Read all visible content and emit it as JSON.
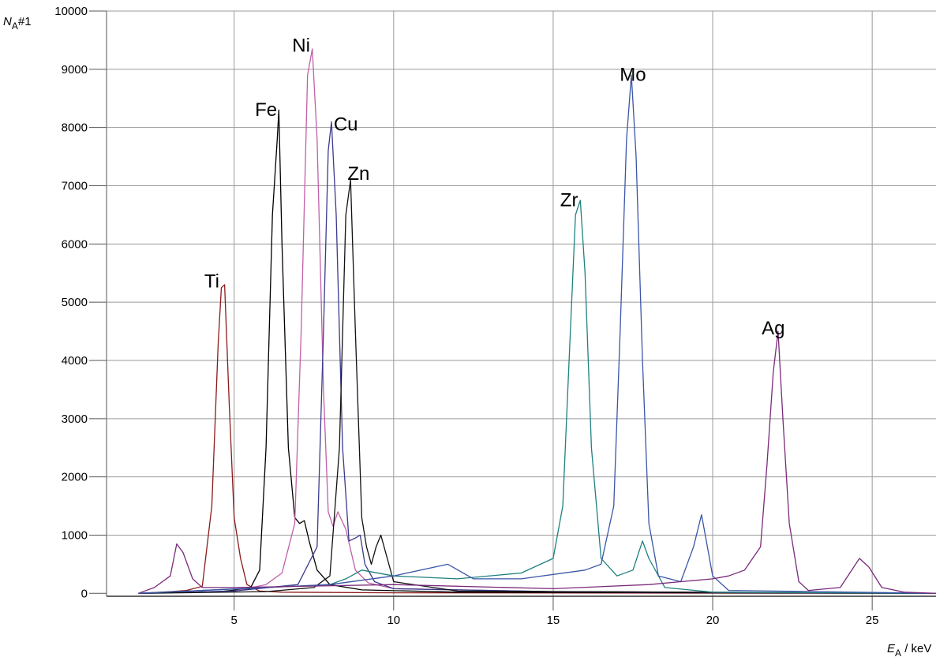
{
  "chart_data": {
    "type": "line",
    "title": "",
    "ylabel": {
      "symbol": "N",
      "subscript": "A",
      "suffix": "#1"
    },
    "xlabel": {
      "symbol": "E",
      "subscript": "A",
      "suffix": " / keV"
    },
    "xlim": [
      1,
      27
    ],
    "ylim": [
      -50,
      10000
    ],
    "x_ticks": [
      5,
      10,
      15,
      20,
      25
    ],
    "y_ticks": [
      0,
      1000,
      2000,
      3000,
      4000,
      5000,
      6000,
      7000,
      8000,
      9000,
      10000
    ],
    "grid": true,
    "series": [
      {
        "name": "Ti",
        "color": "#8b1a1a",
        "x": [
          2.0,
          3.0,
          3.5,
          4.0,
          4.3,
          4.5,
          4.6,
          4.7,
          4.85,
          5.0,
          5.2,
          5.4,
          5.8,
          6.5,
          10.0,
          27.0
        ],
        "y": [
          0,
          30,
          50,
          120,
          1500,
          4300,
          5250,
          5300,
          3200,
          1300,
          600,
          150,
          40,
          20,
          10,
          0
        ]
      },
      {
        "name": "Fe",
        "color": "#000000",
        "x": [
          2.0,
          4.5,
          5.5,
          5.8,
          6.0,
          6.2,
          6.35,
          6.4,
          6.5,
          6.7,
          6.9,
          7.05,
          7.2,
          7.35,
          7.6,
          8.0,
          9.0,
          12.0,
          27.0
        ],
        "y": [
          0,
          30,
          80,
          400,
          2500,
          6500,
          7800,
          8300,
          6000,
          2500,
          1300,
          1200,
          1250,
          900,
          400,
          150,
          60,
          20,
          0
        ]
      },
      {
        "name": "Ni",
        "color": "#c060a8",
        "x": [
          2.0,
          5.0,
          6.0,
          6.5,
          6.9,
          7.1,
          7.3,
          7.45,
          7.6,
          7.8,
          7.95,
          8.1,
          8.25,
          8.5,
          8.8,
          9.2,
          10.0,
          15.0,
          27.0
        ],
        "y": [
          0,
          40,
          150,
          350,
          1200,
          4500,
          8900,
          9350,
          7800,
          3500,
          1400,
          1150,
          1400,
          1100,
          400,
          180,
          80,
          30,
          0
        ]
      },
      {
        "name": "Cu",
        "color": "#3a3a8c",
        "x": [
          2.0,
          5.0,
          7.0,
          7.6,
          7.8,
          7.95,
          8.05,
          8.2,
          8.4,
          8.6,
          8.8,
          8.95,
          9.1,
          9.4,
          10.0,
          15.0,
          27.0
        ],
        "y": [
          0,
          40,
          150,
          800,
          4500,
          7600,
          8100,
          6500,
          2500,
          900,
          950,
          1000,
          500,
          200,
          80,
          30,
          0
        ]
      },
      {
        "name": "Zn",
        "color": "#111111",
        "x": [
          2.0,
          6.0,
          7.5,
          8.0,
          8.3,
          8.5,
          8.65,
          8.8,
          9.0,
          9.15,
          9.3,
          9.45,
          9.6,
          9.8,
          10.0,
          12.0,
          27.0
        ],
        "y": [
          0,
          30,
          100,
          300,
          2500,
          6500,
          7100,
          4500,
          1300,
          800,
          500,
          800,
          1000,
          600,
          200,
          40,
          0
        ]
      },
      {
        "name": "Zr",
        "color": "#1e8080",
        "x": [
          2.0,
          8.0,
          8.5,
          9.0,
          10.0,
          12.0,
          14.0,
          15.0,
          15.3,
          15.5,
          15.7,
          15.85,
          16.0,
          16.2,
          16.5,
          17.0,
          17.5,
          17.8,
          18.0,
          18.5,
          20.0,
          27.0
        ],
        "y": [
          0,
          150,
          250,
          400,
          300,
          250,
          350,
          600,
          1500,
          4000,
          6500,
          6750,
          5500,
          2500,
          600,
          300,
          400,
          900,
          600,
          100,
          20,
          0
        ]
      },
      {
        "name": "Mo",
        "color": "#3a55a8",
        "x": [
          2.0,
          8.0,
          10.0,
          11.7,
          12.5,
          14.0,
          16.0,
          16.5,
          16.9,
          17.1,
          17.3,
          17.45,
          17.6,
          17.8,
          18.0,
          18.3,
          19.0,
          19.4,
          19.65,
          19.8,
          20.0,
          20.5,
          27.0
        ],
        "y": [
          0,
          150,
          300,
          500,
          250,
          250,
          400,
          500,
          1500,
          4500,
          7800,
          8900,
          7500,
          4000,
          1200,
          300,
          200,
          800,
          1350,
          900,
          300,
          50,
          0
        ]
      },
      {
        "name": "Ag",
        "color": "#7a2a7a",
        "x": [
          2.0,
          2.5,
          3.0,
          3.2,
          3.4,
          3.7,
          4.0,
          5.0,
          10.0,
          15.0,
          18.0,
          19.0,
          20.0,
          20.5,
          21.0,
          21.5,
          21.7,
          21.9,
          22.05,
          22.2,
          22.4,
          22.7,
          23.0,
          24.0,
          24.6,
          24.9,
          25.3,
          26.0,
          27.0
        ],
        "y": [
          0,
          100,
          300,
          850,
          700,
          250,
          100,
          100,
          150,
          80,
          150,
          200,
          250,
          300,
          400,
          800,
          2200,
          3800,
          4500,
          3000,
          1200,
          200,
          50,
          100,
          600,
          450,
          100,
          20,
          0
        ]
      }
    ],
    "annotations": [
      {
        "text": "Ti",
        "x": 4.3,
        "y": 5250
      },
      {
        "text": "Fe",
        "x": 6.0,
        "y": 8200
      },
      {
        "text": "Ni",
        "x": 7.1,
        "y": 9300
      },
      {
        "text": "Cu",
        "x": 8.5,
        "y": 7950
      },
      {
        "text": "Zn",
        "x": 8.9,
        "y": 7100
      },
      {
        "text": "Zr",
        "x": 15.5,
        "y": 6650
      },
      {
        "text": "Mo",
        "x": 17.5,
        "y": 8800
      },
      {
        "text": "Ag",
        "x": 21.9,
        "y": 4450
      }
    ]
  }
}
